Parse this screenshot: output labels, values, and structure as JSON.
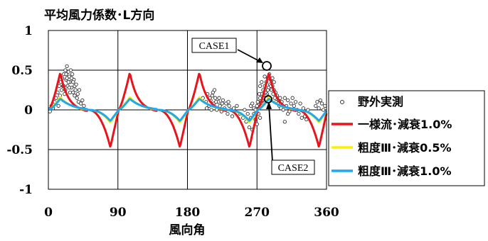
{
  "chart_data": {
    "type": "line",
    "title": "平均風力係数･L方向",
    "xlabel": "風向角",
    "ylabel": "",
    "xlim": [
      0,
      360
    ],
    "ylim": [
      -1,
      1
    ],
    "x_ticks": [
      "0",
      "90",
      "180",
      "270",
      "360"
    ],
    "y_ticks": [
      "1",
      "0.5",
      "0",
      "-0.5",
      "-1"
    ],
    "grid": true,
    "legend_position": "right",
    "annotations": [
      "CASE1",
      "CASE2"
    ],
    "series": [
      {
        "name": "野外実測",
        "style": "scatter-open-circle",
        "color": "#555555",
        "points": [
          [
            2,
            -0.02
          ],
          [
            4,
            0.05
          ],
          [
            6,
            0.02
          ],
          [
            8,
            0.1
          ],
          [
            10,
            0.15
          ],
          [
            12,
            0.22
          ],
          [
            13,
            0.05
          ],
          [
            14,
            0.3
          ],
          [
            15,
            0.18
          ],
          [
            16,
            0.35
          ],
          [
            17,
            0.25
          ],
          [
            18,
            0.4
          ],
          [
            19,
            0.3
          ],
          [
            20,
            0.45
          ],
          [
            21,
            0.2
          ],
          [
            22,
            0.5
          ],
          [
            23,
            0.38
          ],
          [
            24,
            0.55
          ],
          [
            25,
            0.3
          ],
          [
            26,
            0.48
          ],
          [
            27,
            0.42
          ],
          [
            28,
            0.35
          ],
          [
            29,
            0.5
          ],
          [
            30,
            0.28
          ],
          [
            31,
            0.45
          ],
          [
            32,
            0.22
          ],
          [
            33,
            0.38
          ],
          [
            34,
            0.3
          ],
          [
            35,
            0.25
          ],
          [
            36,
            0.32
          ],
          [
            37,
            0.15
          ],
          [
            38,
            0.2
          ],
          [
            39,
            0.1
          ],
          [
            40,
            0.25
          ],
          [
            42,
            0.08
          ],
          [
            44,
            0.12
          ],
          [
            46,
            0.05
          ],
          [
            48,
            0.0
          ],
          [
            20,
            0.3
          ],
          [
            22,
            0.25
          ],
          [
            24,
            0.4
          ],
          [
            26,
            0.35
          ],
          [
            28,
            0.22
          ],
          [
            30,
            0.4
          ],
          [
            32,
            0.35
          ],
          [
            34,
            0.18
          ],
          [
            23,
            0.45
          ],
          [
            27,
            0.28
          ],
          [
            200,
            0.15
          ],
          [
            204,
            0.1
          ],
          [
            206,
            0.2
          ],
          [
            208,
            0.05
          ],
          [
            210,
            0.12
          ],
          [
            212,
            0.18
          ],
          [
            214,
            0.08
          ],
          [
            216,
            0.15
          ],
          [
            218,
            0.0
          ],
          [
            220,
            0.1
          ],
          [
            222,
            0.05
          ],
          [
            224,
            -0.02
          ],
          [
            226,
            0.12
          ],
          [
            228,
            0.02
          ],
          [
            230,
            0.08
          ],
          [
            232,
            -0.05
          ],
          [
            234,
            0.05
          ],
          [
            236,
            0.0
          ],
          [
            238,
            -0.08
          ],
          [
            240,
            0.02
          ],
          [
            205,
            0.02
          ],
          [
            209,
            0.15
          ],
          [
            213,
            0.22
          ],
          [
            217,
            0.1
          ],
          [
            221,
            0.15
          ],
          [
            225,
            0.08
          ],
          [
            229,
            0.0
          ],
          [
            233,
            0.1
          ],
          [
            211,
            0.0
          ],
          [
            215,
            0.25
          ],
          [
            244,
            0.05
          ],
          [
            248,
            -0.05
          ],
          [
            252,
            -0.1
          ],
          [
            254,
            0.0
          ],
          [
            256,
            -0.15
          ],
          [
            258,
            -0.05
          ],
          [
            260,
            -0.22
          ],
          [
            262,
            -0.1
          ],
          [
            264,
            -0.25
          ],
          [
            266,
            0.02
          ],
          [
            262,
            0.05
          ],
          [
            264,
            0.08
          ],
          [
            266,
            -0.05
          ],
          [
            268,
            0.0
          ],
          [
            270,
            0.05
          ],
          [
            272,
            0.1
          ],
          [
            274,
            0.15
          ],
          [
            276,
            0.2
          ],
          [
            278,
            0.25
          ],
          [
            280,
            0.3
          ],
          [
            282,
            0.35
          ],
          [
            283,
            0.2
          ],
          [
            284,
            0.4
          ],
          [
            285,
            0.28
          ],
          [
            286,
            0.45
          ],
          [
            287,
            0.32
          ],
          [
            288,
            0.38
          ],
          [
            289,
            0.25
          ],
          [
            290,
            0.3
          ],
          [
            291,
            0.2
          ],
          [
            292,
            0.25
          ],
          [
            293,
            0.15
          ],
          [
            294,
            0.22
          ],
          [
            295,
            0.1
          ],
          [
            296,
            0.18
          ],
          [
            297,
            0.08
          ],
          [
            298,
            0.12
          ],
          [
            299,
            0.05
          ],
          [
            300,
            0.15
          ],
          [
            301,
            0.02
          ],
          [
            274,
            0.3
          ],
          [
            276,
            0.35
          ],
          [
            278,
            0.15
          ],
          [
            280,
            0.42
          ],
          [
            282,
            0.18
          ],
          [
            284,
            0.25
          ],
          [
            286,
            0.15
          ],
          [
            288,
            0.3
          ],
          [
            290,
            0.4
          ],
          [
            292,
            0.35
          ],
          [
            302,
            0.1
          ],
          [
            304,
            0.0
          ],
          [
            306,
            0.15
          ],
          [
            308,
            0.05
          ],
          [
            310,
            0.12
          ],
          [
            312,
            -0.02
          ],
          [
            314,
            0.08
          ],
          [
            316,
            0.15
          ],
          [
            318,
            0.05
          ],
          [
            320,
            0.1
          ],
          [
            268,
            -0.12
          ],
          [
            270,
            -0.18
          ],
          [
            272,
            -0.05
          ],
          [
            274,
            -0.1
          ],
          [
            271,
            0.1
          ],
          [
            273,
            0.2
          ],
          [
            275,
            0.05
          ],
          [
            277,
            0.12
          ],
          [
            279,
            0.08
          ],
          [
            281,
            0.22
          ],
          [
            322,
            0.0
          ],
          [
            324,
            -0.05
          ],
          [
            326,
            0.08
          ],
          [
            328,
            -0.1
          ],
          [
            330,
            0.02
          ],
          [
            332,
            -0.08
          ],
          [
            334,
            -0.12
          ],
          [
            336,
            0.0
          ],
          [
            306,
            -0.15
          ],
          [
            310,
            -0.05
          ],
          [
            346,
            0.05
          ],
          [
            348,
            0.1
          ],
          [
            350,
            0.02
          ],
          [
            352,
            0.12
          ],
          [
            354,
            0.08
          ],
          [
            356,
            0.0
          ],
          [
            358,
            0.05
          ]
        ]
      },
      {
        "name": "一様流･減衰1.0%",
        "color": "#e8141b",
        "amplitude": 0.47,
        "k": 1.0
      },
      {
        "name": "粗度Ⅲ･減衰0.5%",
        "color": "#ffee00",
        "amplitude": 0.16,
        "k": 0.7
      },
      {
        "name": "粗度Ⅲ･減衰1.0%",
        "color": "#1ea8f0",
        "amplitude": 0.14,
        "k": 0.6
      }
    ]
  }
}
